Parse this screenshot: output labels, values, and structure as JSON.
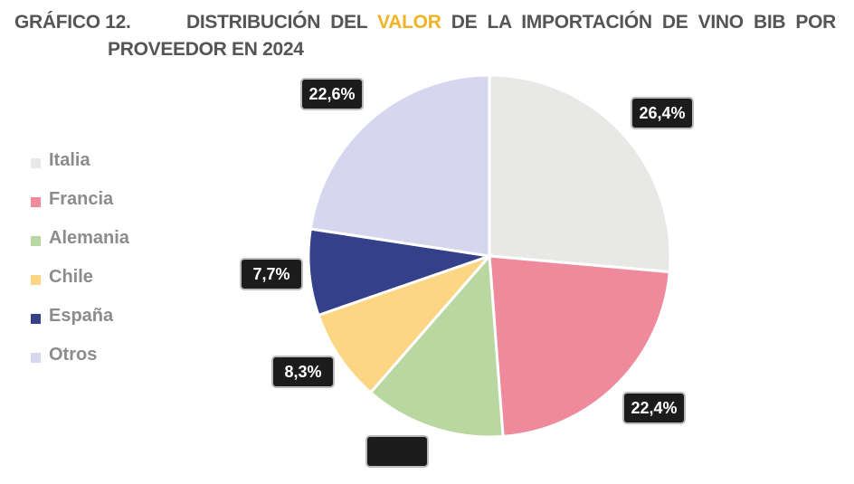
{
  "title": {
    "number": "GRÁFICO 12.",
    "line1_pre": "DISTRIBUCIÓN DEL ",
    "line1_highlight": "VALOR",
    "line1_post": " DE LA IMPORTACIÓN DE VINO BIB POR",
    "line2": "PROVEEDOR EN 2024",
    "highlight_color": "#f0b323"
  },
  "chart_data": {
    "type": "pie",
    "title": "DISTRIBUCIÓN DEL VALOR DE LA IMPORTACIÓN DE VINO BIB POR PROVEEDOR EN 2024",
    "legend_placement": "left",
    "categories": [
      "Italia",
      "Francia",
      "Alemania",
      "Chile",
      "España",
      "Otros"
    ],
    "values": [
      26.4,
      22.4,
      12.6,
      8.3,
      7.7,
      22.6
    ],
    "data_labels": [
      "26,4%",
      "22,4%",
      "",
      "8,3%",
      "7,7%",
      "22,6%"
    ],
    "colors": [
      "#e8e8e6",
      "#ee8a9b",
      "#b9d7a0",
      "#fdd685",
      "#35408a",
      "#d6d7ee"
    ]
  }
}
